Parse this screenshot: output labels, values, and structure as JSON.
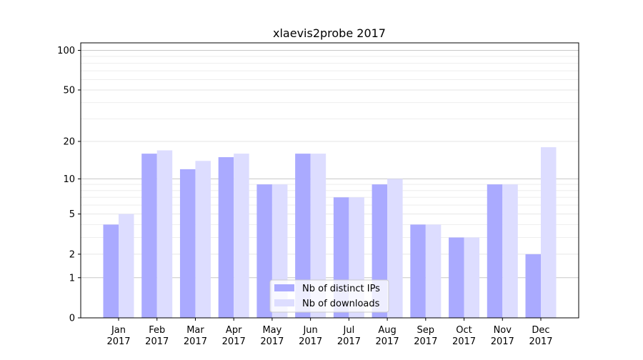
{
  "chart_data": {
    "type": "bar",
    "title": "xlaevis2probe 2017",
    "xlabel": "",
    "ylabel": "",
    "yscale": "symlog",
    "ylim": [
      0,
      114
    ],
    "yticks": [
      0,
      1,
      2,
      5,
      10,
      20,
      50,
      100
    ],
    "grid": true,
    "legend_position": "bottom-center",
    "categories": [
      "Jan\n2017",
      "Feb\n2017",
      "Mar\n2017",
      "Apr\n2017",
      "May\n2017",
      "Jun\n2017",
      "Jul\n2017",
      "Aug\n2017",
      "Sep\n2017",
      "Oct\n2017",
      "Nov\n2017",
      "Dec\n2017"
    ],
    "series": [
      {
        "name": "Nb of distinct IPs",
        "color": "#aaaaff",
        "values": [
          4,
          16,
          12,
          15,
          9,
          16,
          7,
          9,
          4,
          3,
          9,
          2
        ]
      },
      {
        "name": "Nb of downloads",
        "color": "#ddddff",
        "values": [
          5,
          17,
          14,
          16,
          9,
          16,
          7,
          10,
          4,
          3,
          9,
          18
        ]
      }
    ]
  }
}
